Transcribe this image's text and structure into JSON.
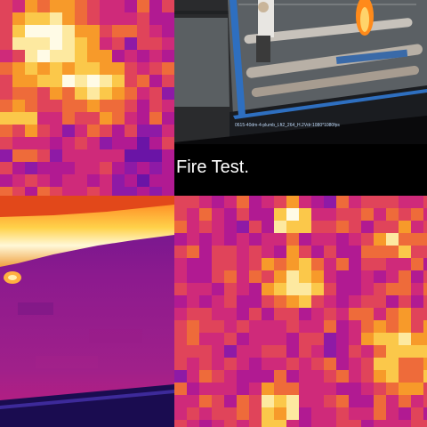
{
  "panels": {
    "top_left": {
      "kind": "thermal-closeup"
    },
    "top_right": {
      "kind": "video-frame",
      "caption": "Fire Test.",
      "info_bar": "0615-40dm-4-plumb_Lft2_264_H.2Vdr:1080*1080fps"
    },
    "bottom_left": {
      "kind": "thermal-flame-line"
    },
    "bottom_right": {
      "kind": "thermal-closeup"
    }
  },
  "palette": {
    "ironbow": [
      "#1b0a5a",
      "#3a0f8a",
      "#6a14a6",
      "#8e1aa6",
      "#b11a92",
      "#cf2a7a",
      "#e0445a",
      "#ee6b3a",
      "#f79a2a",
      "#fbc84a",
      "#fde9a0",
      "#fffbe6"
    ]
  }
}
